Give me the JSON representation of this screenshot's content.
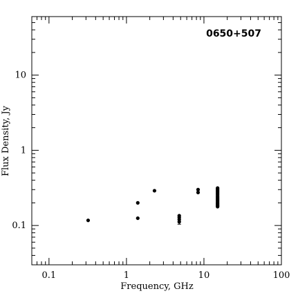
{
  "chart_data": {
    "type": "scatter",
    "title": "0650+507",
    "xlabel": "Frequency, GHz",
    "ylabel": "Flux Density, Jy",
    "xscale": "log",
    "yscale": "log",
    "xlim": [
      0.06,
      100
    ],
    "ylim": [
      0.03,
      60
    ],
    "xticks": [
      {
        "value": 0.1,
        "label": "0.1"
      },
      {
        "value": 1,
        "label": "1"
      },
      {
        "value": 10,
        "label": "10"
      },
      {
        "value": 100,
        "label": "100"
      }
    ],
    "yticks": [
      {
        "value": 0.1,
        "label": "0.1"
      },
      {
        "value": 1,
        "label": "1"
      },
      {
        "value": 10,
        "label": "10"
      }
    ],
    "grid": false,
    "legend": "none",
    "marker_color": "#000000",
    "points": [
      {
        "x": 0.32,
        "y": 0.117
      },
      {
        "x": 1.4,
        "y": 0.125
      },
      {
        "x": 1.4,
        "y": 0.2
      },
      {
        "x": 2.3,
        "y": 0.29
      },
      {
        "x": 4.8,
        "y": 0.135
      },
      {
        "x": 4.8,
        "y": 0.128
      },
      {
        "x": 4.8,
        "y": 0.12
      },
      {
        "x": 4.8,
        "y": 0.112,
        "err": [
          0.104,
          0.118
        ]
      },
      {
        "x": 8.4,
        "y": 0.3
      },
      {
        "x": 8.4,
        "y": 0.275
      },
      {
        "x": 15,
        "y": 0.315
      },
      {
        "x": 15,
        "y": 0.305
      },
      {
        "x": 15,
        "y": 0.295
      },
      {
        "x": 15,
        "y": 0.285
      },
      {
        "x": 15,
        "y": 0.275
      },
      {
        "x": 15,
        "y": 0.265
      },
      {
        "x": 15,
        "y": 0.255
      },
      {
        "x": 15,
        "y": 0.245
      },
      {
        "x": 15,
        "y": 0.237
      },
      {
        "x": 15,
        "y": 0.229
      },
      {
        "x": 15,
        "y": 0.222
      },
      {
        "x": 15,
        "y": 0.215
      },
      {
        "x": 15,
        "y": 0.208
      },
      {
        "x": 15,
        "y": 0.201
      },
      {
        "x": 15,
        "y": 0.195
      },
      {
        "x": 15,
        "y": 0.189
      },
      {
        "x": 15,
        "y": 0.183
      },
      {
        "x": 15,
        "y": 0.178
      }
    ]
  }
}
